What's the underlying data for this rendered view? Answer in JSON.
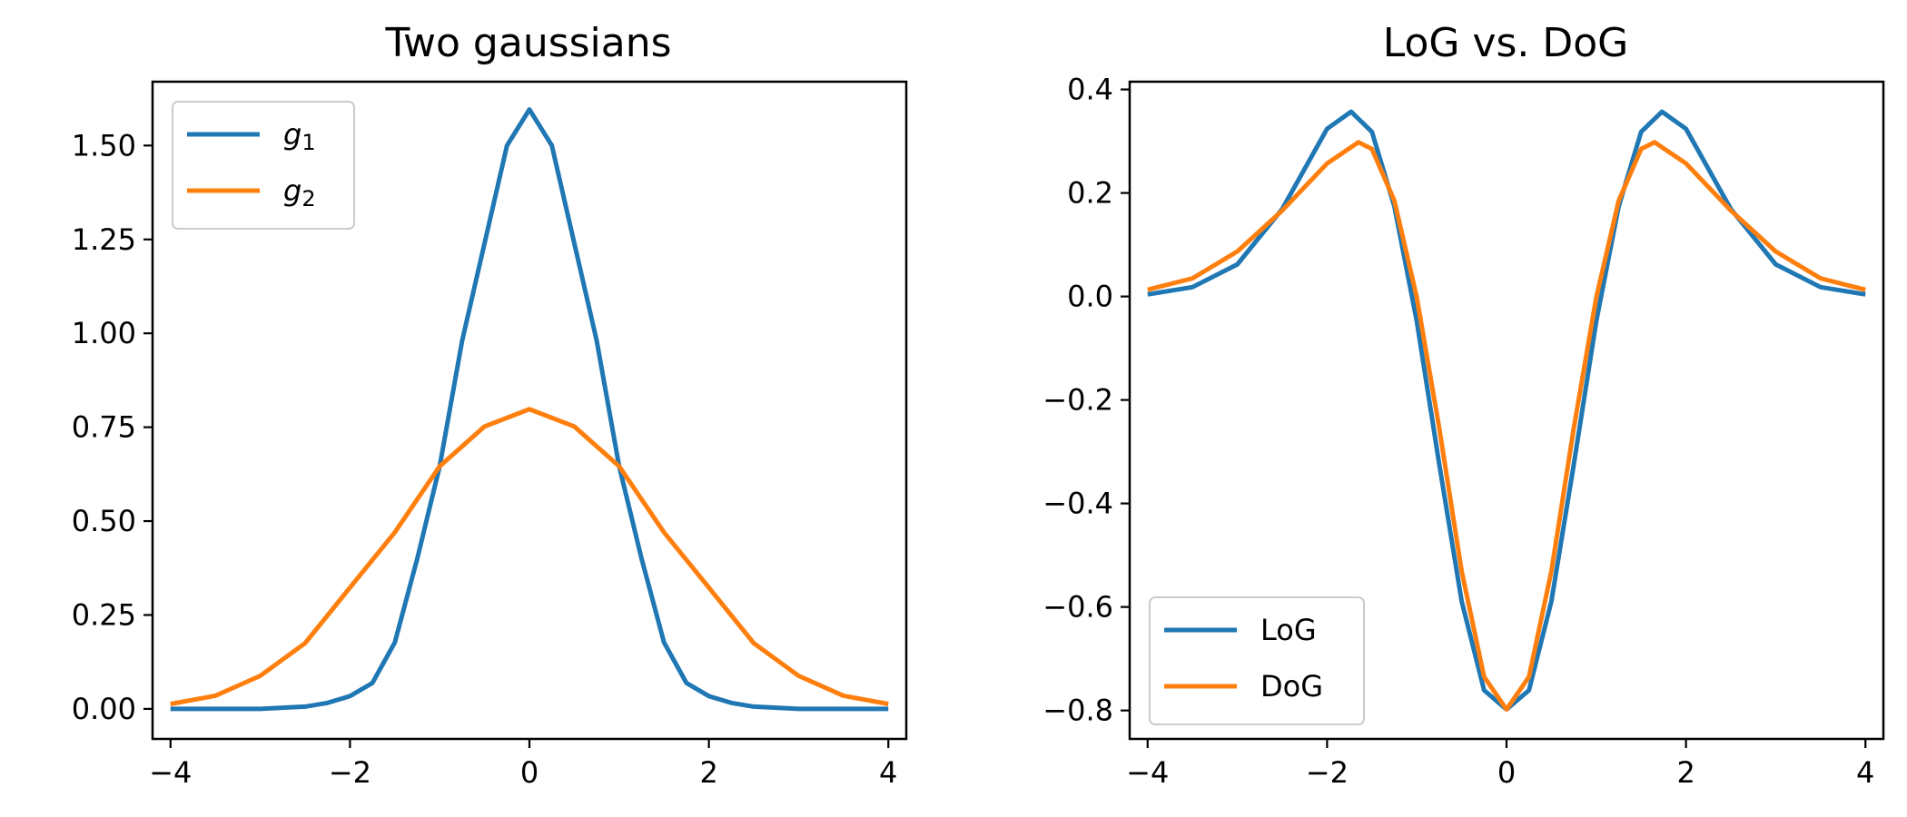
{
  "chart_data": [
    {
      "type": "line",
      "title": "Two gaussians",
      "xlabel": "",
      "ylabel": "",
      "xlim": [
        -4.2,
        4.2
      ],
      "ylim": [
        -0.08,
        1.67
      ],
      "xticks": [
        -4,
        -2,
        0,
        2,
        4
      ],
      "xtick_labels": [
        "−4",
        "−2",
        "0",
        "2",
        "4"
      ],
      "yticks": [
        0.0,
        0.25,
        0.5,
        0.75,
        1.0,
        1.25,
        1.5
      ],
      "ytick_labels": [
        "0.00",
        "0.25",
        "0.50",
        "0.75",
        "1.00",
        "1.25",
        "1.50"
      ],
      "grid": false,
      "legend": {
        "location": "upper left"
      },
      "series": [
        {
          "name": "g",
          "name_sub": "1",
          "color": "#1f77b4",
          "x": [
            -4.0,
            -3.5,
            -3.0,
            -2.5,
            -2.25,
            -2.0,
            -1.75,
            -1.5,
            -1.25,
            -1.0,
            -0.75,
            -0.5,
            -0.25,
            0.0,
            0.25,
            0.5,
            0.75,
            1.0,
            1.25,
            1.5,
            1.75,
            2.0,
            2.25,
            2.5,
            3.0,
            3.5,
            4.0
          ],
          "y": [
            0.0,
            0.0,
            0.0,
            0.006,
            0.016,
            0.034,
            0.069,
            0.177,
            0.4,
            0.646,
            0.98,
            1.24,
            1.5,
            1.596,
            1.5,
            1.24,
            0.98,
            0.646,
            0.4,
            0.177,
            0.069,
            0.034,
            0.016,
            0.006,
            0.0,
            0.0,
            0.0
          ]
        },
        {
          "name": "g",
          "name_sub": "2",
          "color": "#ff7f0e",
          "x": [
            -4.0,
            -3.5,
            -3.0,
            -2.5,
            -2.0,
            -1.5,
            -1.0,
            -0.5,
            0.0,
            0.5,
            1.0,
            1.5,
            2.0,
            2.5,
            3.0,
            3.5,
            4.0
          ],
          "y": [
            0.013,
            0.035,
            0.088,
            0.175,
            0.323,
            0.47,
            0.646,
            0.752,
            0.798,
            0.752,
            0.646,
            0.47,
            0.323,
            0.175,
            0.088,
            0.035,
            0.013
          ]
        }
      ]
    },
    {
      "type": "line",
      "title": "LoG vs. DoG",
      "xlabel": "",
      "ylabel": "",
      "xlim": [
        -4.2,
        4.2
      ],
      "ylim": [
        -0.855,
        0.415
      ],
      "xticks": [
        -4,
        -2,
        0,
        2,
        4
      ],
      "xtick_labels": [
        "−4",
        "−2",
        "0",
        "2",
        "4"
      ],
      "yticks": [
        -0.8,
        -0.6,
        -0.4,
        -0.2,
        0.0,
        0.2,
        0.4
      ],
      "ytick_labels": [
        "−0.8",
        "−0.6",
        "−0.4",
        "−0.2",
        "0.0",
        "0.2",
        "0.4"
      ],
      "grid": false,
      "legend": {
        "location": "lower left"
      },
      "series": [
        {
          "name": "LoG",
          "color": "#1f77b4",
          "x": [
            -4.0,
            -3.5,
            -3.0,
            -2.5,
            -2.0,
            -1.732,
            -1.5,
            -1.25,
            -1.0,
            -0.75,
            -0.5,
            -0.25,
            0.0,
            0.25,
            0.5,
            0.75,
            1.0,
            1.25,
            1.5,
            1.732,
            2.0,
            2.5,
            3.0,
            3.5,
            4.0
          ],
          "y": [
            0.004,
            0.018,
            0.062,
            0.169,
            0.324,
            0.357,
            0.318,
            0.174,
            -0.048,
            -0.324,
            -0.589,
            -0.761,
            -0.798,
            -0.761,
            -0.589,
            -0.324,
            -0.048,
            0.174,
            0.318,
            0.357,
            0.324,
            0.169,
            0.062,
            0.018,
            0.004
          ]
        },
        {
          "name": "DoG",
          "color": "#ff7f0e",
          "x": [
            -4.0,
            -3.5,
            -3.0,
            -2.5,
            -2.0,
            -1.65,
            -1.5,
            -1.25,
            -1.0,
            -0.75,
            -0.5,
            -0.25,
            0.0,
            0.25,
            0.5,
            0.75,
            1.0,
            1.25,
            1.5,
            1.65,
            2.0,
            2.5,
            3.0,
            3.5,
            4.0
          ],
          "y": [
            0.013,
            0.035,
            0.087,
            0.166,
            0.257,
            0.298,
            0.285,
            0.185,
            -0.002,
            -0.254,
            -0.531,
            -0.735,
            -0.798,
            -0.735,
            -0.531,
            -0.254,
            -0.002,
            0.185,
            0.285,
            0.298,
            0.257,
            0.166,
            0.087,
            0.035,
            0.013
          ]
        }
      ]
    }
  ]
}
